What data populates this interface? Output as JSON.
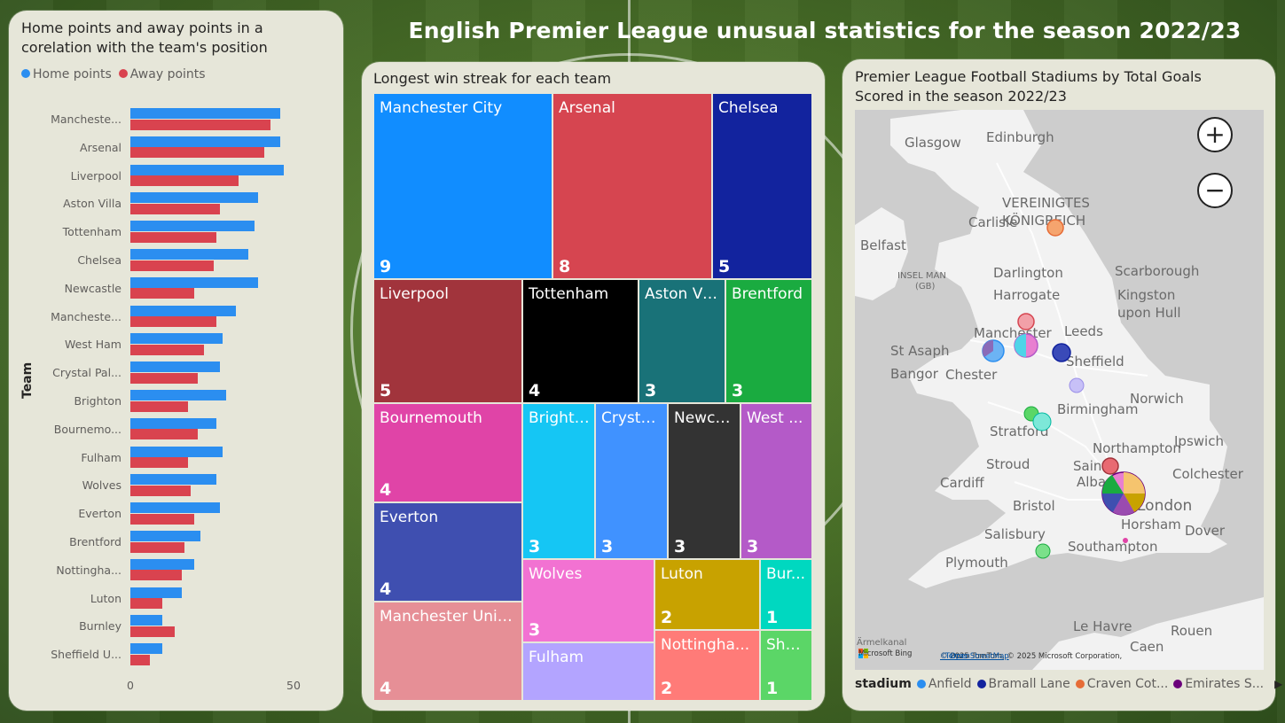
{
  "page": {
    "title": "English Premier League unusual statistics for the season 2022/23"
  },
  "bar_panel": {
    "title_line1": "Home points and away points in a",
    "title_line2": "corelation with the team's position",
    "legend": [
      {
        "label": "Home points",
        "color": "#2b8ef0"
      },
      {
        "label": "Away points",
        "color": "#d9434f"
      }
    ],
    "ylabel": "Team",
    "ticks": [
      "0",
      "50"
    ]
  },
  "chart_data": [
    {
      "type": "bar",
      "orientation": "horizontal",
      "title": "Home points and away points in a corelation with the team's position",
      "ylabel": "Team",
      "xlim": [
        0,
        60
      ],
      "categories": [
        "Mancheste...",
        "Arsenal",
        "Liverpool",
        "Aston Villa",
        "Tottenham",
        "Chelsea",
        "Newcastle",
        "Mancheste...",
        "West Ham",
        "Crystal Pal...",
        "Brighton",
        "Bournemo...",
        "Fulham",
        "Wolves",
        "Everton",
        "Brentford",
        "Nottingha...",
        "Luton",
        "Burnley",
        "Sheffield U..."
      ],
      "series": [
        {
          "name": "Home points",
          "color": "#2b8ef0",
          "values": [
            47,
            47,
            48,
            40,
            39,
            37,
            40,
            33,
            29,
            28,
            30,
            27,
            29,
            27,
            28,
            22,
            20,
            16,
            10,
            10
          ]
        },
        {
          "name": "Away points",
          "color": "#d9434f",
          "values": [
            44,
            42,
            34,
            28,
            27,
            26,
            20,
            27,
            23,
            21,
            18,
            21,
            18,
            19,
            20,
            17,
            16,
            10,
            14,
            6
          ]
        }
      ]
    },
    {
      "type": "treemap",
      "title": "Longest win streak for each team",
      "items": [
        {
          "label": "Manchester City",
          "value": 9,
          "color": "#118dff"
        },
        {
          "label": "Arsenal",
          "value": 8,
          "color": "#d64550"
        },
        {
          "label": "Chelsea",
          "value": 5,
          "color": "#12239e"
        },
        {
          "label": "Liverpool",
          "value": 5,
          "color": "#a1343c"
        },
        {
          "label": "Tottenham",
          "value": 4,
          "color": "#000000"
        },
        {
          "label": "Aston Villa",
          "value": 3,
          "color": "#197278"
        },
        {
          "label": "Brentford",
          "value": 3,
          "color": "#1aab40"
        },
        {
          "label": "Bournemouth",
          "value": 4,
          "color": "#e044a7"
        },
        {
          "label": "Everton",
          "value": 4,
          "color": "#3f4fb0"
        },
        {
          "label": "Manchester United",
          "value": 4,
          "color": "#e68f96"
        },
        {
          "label": "Brighton",
          "value": 3,
          "color": "#15c6f4"
        },
        {
          "label": "Crystal...",
          "value": 3,
          "color": "#4092ff"
        },
        {
          "label": "Newca...",
          "value": 3,
          "color": "#333333"
        },
        {
          "label": "West ...",
          "value": 3,
          "color": "#b45ac8"
        },
        {
          "label": "Wolves",
          "value": 3,
          "color": "#f272d2"
        },
        {
          "label": "Fulham",
          "value": "",
          "color": "#b3a4ff"
        },
        {
          "label": "Luton",
          "value": 2,
          "color": "#c8a200"
        },
        {
          "label": "Bur...",
          "value": 1,
          "color": "#00d8c0"
        },
        {
          "label": "Nottingha...",
          "value": 2,
          "color": "#ff7b78"
        },
        {
          "label": "She...",
          "value": 1,
          "color": "#5bd667"
        }
      ]
    }
  ],
  "map_panel": {
    "title_line1": "Premier League Football Stadiums by Total Goals",
    "title_line2": "Scored in the season 2022/23",
    "zoom_in": "+",
    "zoom_out": "−",
    "labels": [
      "Glasgow",
      "Edinburgh",
      "VEREINIGTES",
      "KÖNIGREICH",
      "Carlisle",
      "Belfast",
      "Darlington",
      "Scarborough",
      "INSEL MAN",
      "(GB)",
      "Harrogate",
      "Kingston",
      "upon Hull",
      "Manchester",
      "Leeds",
      "St Asaph",
      "Sheffield",
      "Bangor",
      "Chester",
      "Norwich",
      "Birmingham",
      "Stratford",
      "Northampton",
      "Ipswich",
      "Stroud",
      "Saint",
      "Albans",
      "Colchester",
      "Cardiff",
      "Bristol",
      "London",
      "Horsham",
      "Dover",
      "Salisbury",
      "Plymouth",
      "Southampton",
      "Le Havre",
      "Rouen",
      "Ärmelkanal",
      "Caen"
    ],
    "bing": "Microsoft Bing",
    "attribution": "© 2025 TomTom, © 2025 Microsoft Corporation,",
    "osm": "© OpenStreetMap",
    "terms": "Terms",
    "legend_title": "stadium",
    "legend": [
      {
        "label": "Anfield",
        "color": "#2b8ef0"
      },
      {
        "label": "Bramall Lane",
        "color": "#12239e"
      },
      {
        "label": "Craven Cot...",
        "color": "#e66c37"
      },
      {
        "label": "Emirates S...",
        "color": "#6b007b"
      }
    ],
    "legend_more": "▶"
  }
}
